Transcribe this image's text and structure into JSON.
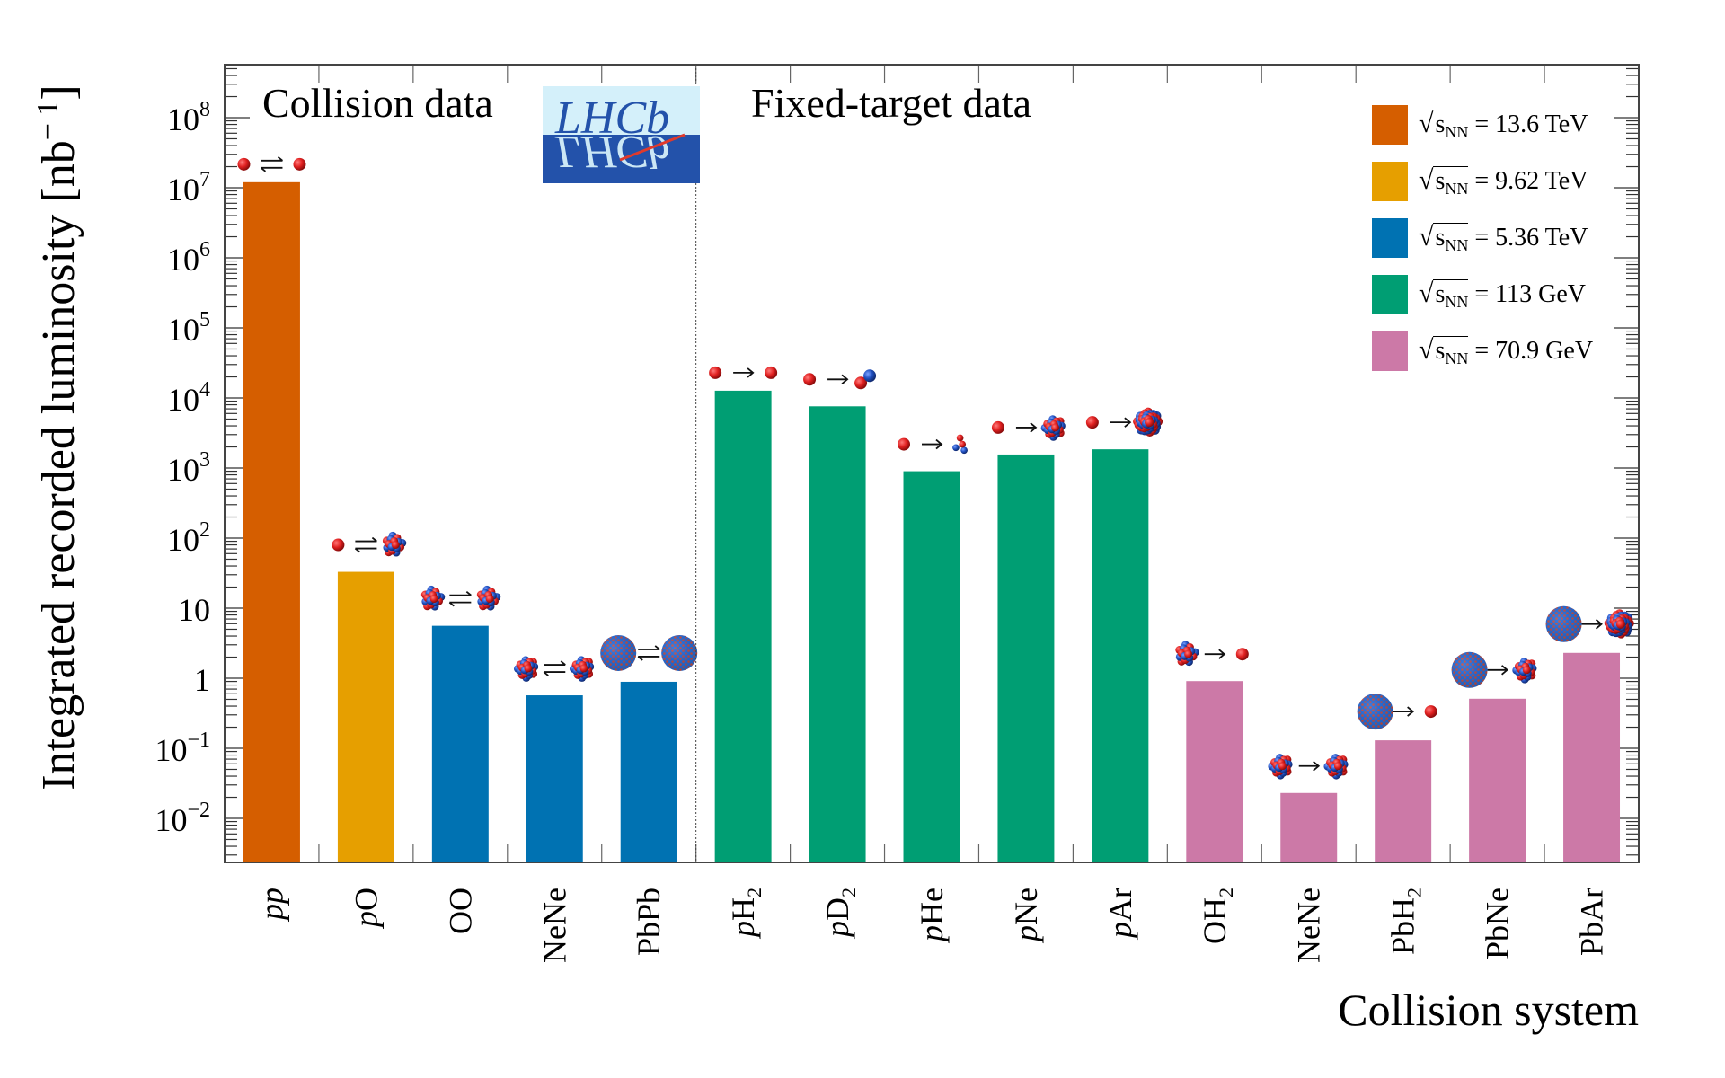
{
  "chart_data": {
    "type": "bar",
    "title": "",
    "xlabel": "Collision system",
    "ylabel": "Integrated recorded luminosity [nb⁻¹]",
    "yscale": "log",
    "ylim": [
      0.0023,
      600000000.0
    ],
    "yticks": [
      {
        "value": 0.01,
        "label_base": "10",
        "label_exp": "−2"
      },
      {
        "value": 0.1,
        "label_base": "10",
        "label_exp": "−1"
      },
      {
        "value": 1,
        "label_base": "1",
        "label_exp": ""
      },
      {
        "value": 10,
        "label_base": "10",
        "label_exp": ""
      },
      {
        "value": 100.0,
        "label_base": "10",
        "label_exp": "2"
      },
      {
        "value": 1000.0,
        "label_base": "10",
        "label_exp": "3"
      },
      {
        "value": 10000.0,
        "label_base": "10",
        "label_exp": "4"
      },
      {
        "value": 100000.0,
        "label_base": "10",
        "label_exp": "5"
      },
      {
        "value": 1000000.0,
        "label_base": "10",
        "label_exp": "6"
      },
      {
        "value": 10000000.0,
        "label_base": "10",
        "label_exp": "7"
      },
      {
        "value": 100000000.0,
        "label_base": "10",
        "label_exp": "8"
      }
    ],
    "categories": [
      {
        "label": "pp",
        "italic_prefix": "pp",
        "rest": "",
        "sub": "",
        "value": 12000000.0,
        "series": "13.6 TeV",
        "icon": "p-p-collider"
      },
      {
        "label": "pO",
        "italic_prefix": "p",
        "rest": "O",
        "sub": "",
        "value": 33,
        "series": "9.62 TeV",
        "icon": "p-O-collider"
      },
      {
        "label": "OO",
        "italic_prefix": "",
        "rest": "OO",
        "sub": "",
        "value": 5.6,
        "series": "5.36 TeV",
        "icon": "O-O-collider"
      },
      {
        "label": "NeNe",
        "italic_prefix": "",
        "rest": "NeNe",
        "sub": "",
        "value": 0.57,
        "series": "5.36 TeV",
        "icon": "Ne-Ne-collider"
      },
      {
        "label": "PbPb",
        "italic_prefix": "",
        "rest": "PbPb",
        "sub": "",
        "value": 0.89,
        "series": "5.36 TeV",
        "icon": "Pb-Pb-collider"
      },
      {
        "label": "pH2",
        "italic_prefix": "p",
        "rest": "H",
        "sub": "2",
        "value": 12700.0,
        "series": "113 GeV",
        "icon": "p-H-fixed"
      },
      {
        "label": "pD2",
        "italic_prefix": "p",
        "rest": "D",
        "sub": "2",
        "value": 7600.0,
        "series": "113 GeV",
        "icon": "p-D-fixed"
      },
      {
        "label": "pHe",
        "italic_prefix": "p",
        "rest": "He",
        "sub": "",
        "value": 900,
        "series": "113 GeV",
        "icon": "p-He-fixed"
      },
      {
        "label": "pNe",
        "italic_prefix": "p",
        "rest": "Ne",
        "sub": "",
        "value": 1560,
        "series": "113 GeV",
        "icon": "p-Ne-fixed"
      },
      {
        "label": "pAr",
        "italic_prefix": "p",
        "rest": "Ar",
        "sub": "",
        "value": 1850,
        "series": "113 GeV",
        "icon": "p-Ar-fixed"
      },
      {
        "label": "OH2",
        "italic_prefix": "",
        "rest": "OH",
        "sub": "2",
        "value": 0.91,
        "series": "70.9 GeV",
        "icon": "O-p-fixed"
      },
      {
        "label": "NeNe",
        "italic_prefix": "",
        "rest": "NeNe",
        "sub": "",
        "value": 0.023,
        "series": "70.9 GeV",
        "icon": "Ne-Ne-fixed"
      },
      {
        "label": "PbH2",
        "italic_prefix": "",
        "rest": "PbH",
        "sub": "2",
        "value": 0.13,
        "series": "70.9 GeV",
        "icon": "Pb-p-fixed"
      },
      {
        "label": "PbNe",
        "italic_prefix": "",
        "rest": "PbNe",
        "sub": "",
        "value": 0.51,
        "series": "70.9 GeV",
        "icon": "Pb-Ne-fixed"
      },
      {
        "label": "PbAr",
        "italic_prefix": "",
        "rest": "PbAr",
        "sub": "",
        "value": 2.3,
        "series": "70.9 GeV",
        "icon": "Pb-Ar-fixed"
      }
    ],
    "series": [
      {
        "name": "13.6 TeV",
        "legend_value": "= 13.6 TeV",
        "color": "#d55e00"
      },
      {
        "name": "9.62 TeV",
        "legend_value": "= 9.62 TeV",
        "color": "#e69f00"
      },
      {
        "name": "5.36 TeV",
        "legend_value": "= 5.36 TeV",
        "color": "#0072b2"
      },
      {
        "name": "113 GeV",
        "legend_value": "= 113 GeV",
        "color": "#009e73"
      },
      {
        "name": "70.9 GeV",
        "legend_value": "= 70.9 GeV",
        "color": "#cc79a7"
      }
    ],
    "legend_symbol": "s",
    "legend_subscript": "NN",
    "legend_position": "top-right",
    "annotations": [
      "Collision data",
      "Fixed-target data"
    ],
    "divider_after_category": 5,
    "grid": false
  },
  "logo": {
    "text": "LHCb",
    "colors": {
      "top": "#d4f0fa",
      "bottom": "#2352aa",
      "text": "#2352aa",
      "accent": "#e03a2c"
    }
  },
  "ylabel_main": "Integrated recorded luminosity [nb",
  "ylabel_exp": "− 1",
  "ylabel_close": "]",
  "xlabel": "Collision system",
  "region_left": "Collision data",
  "region_right": "Fixed-target data",
  "nucleon_colors": {
    "proton": "#e02020",
    "neutron": "#2050c0"
  }
}
